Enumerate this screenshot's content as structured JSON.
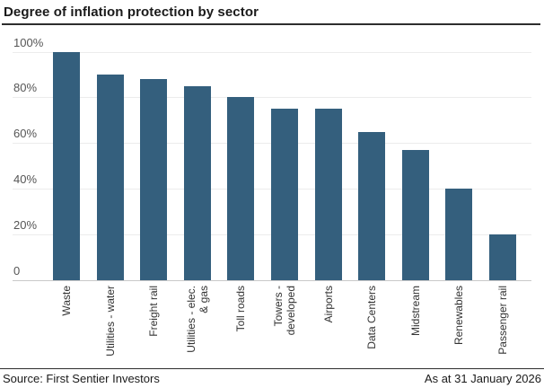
{
  "title": "Degree of inflation protection by sector",
  "footer": {
    "source": "Source: First Sentier Investors",
    "as_at": "As at 31 January 2026"
  },
  "colors": {
    "bar": "#345f7d",
    "gridline": "#ececec",
    "baseline": "#c9c9c9",
    "title_text": "#1a1a1a",
    "tick_text": "#555555",
    "category_text": "#333333"
  },
  "chart_data": {
    "type": "bar",
    "title": "Degree of inflation protection by sector",
    "categories": [
      "Waste",
      "Utilities - water",
      "Freight rail",
      "Utilities - elec.\n& gas",
      "Toll roads",
      "Towers -\ndeveloped",
      "Airports",
      "Data Centers",
      "Midstream",
      "Renewables",
      "Passenger rail"
    ],
    "values": [
      100,
      90,
      88,
      85,
      80,
      75,
      75,
      65,
      57,
      40,
      20
    ],
    "unit": "%",
    "xlabel": "",
    "ylabel": "",
    "ylim": [
      0,
      100
    ],
    "yticks": [
      0,
      20,
      40,
      60,
      80,
      100
    ],
    "ytick_labels": [
      "0",
      "20%",
      "40%",
      "60%",
      "80%",
      "100%"
    ],
    "grid": true,
    "legend": false,
    "category_label_rotation": -90
  }
}
